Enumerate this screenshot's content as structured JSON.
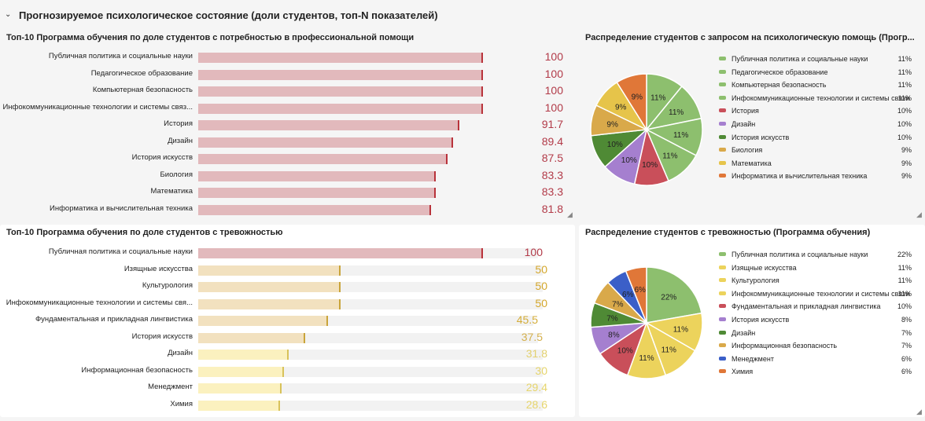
{
  "section": {
    "title": "Прогнозируемое психологическое состояние (доли студентов, топ-N показателей)",
    "chevron": "⌄"
  },
  "panels": {
    "bar_top": {
      "title": "Топ-10 Программа обучения по доле студентов с потребностью в профессиональной помощи"
    },
    "pie_top": {
      "title": "Распределение студентов с запросом на психологическую помощь (Прогр..."
    },
    "bar_bottom": {
      "title": "Топ-10 Программа обучения по доле студентов с тревожностью"
    },
    "pie_bottom": {
      "title": "Распределение студентов с тревожностью (Программа обучения)"
    }
  },
  "chart_data": [
    {
      "type": "bar",
      "title": "Топ-10 Программа обучения по доле студентов с потребностью в профессиональной помощи",
      "categories": [
        "Публичная политика и социальные науки",
        "Педагогическое образование",
        "Компьютерная безопасность",
        "Инфокоммуникационные технологии и системы связ...",
        "История",
        "Дизайн",
        "История искусств",
        "Биология",
        "Математика",
        "Информатика и вычислительная техника"
      ],
      "value_labels": [
        "100",
        "100",
        "100",
        "100",
        "91.7",
        "89.4",
        "87.5",
        "83.3",
        "83.3",
        "81.8"
      ],
      "values": [
        100,
        100,
        100,
        100,
        91.7,
        89.4,
        87.5,
        83.3,
        83.3,
        81.8
      ],
      "max": 100,
      "bar_colors": [
        "#e2b9bc",
        "#e2b9bc",
        "#e2b9bc",
        "#e2b9bc",
        "#e2b9bc",
        "#e2b9bc",
        "#e2b9bc",
        "#e2b9bc",
        "#e2b9bc",
        "#e2b9bc"
      ],
      "tick_colors": [
        "#b8323a",
        "#b8323a",
        "#b8323a",
        "#b8323a",
        "#b8323a",
        "#b8323a",
        "#b8323a",
        "#b8323a",
        "#b8323a",
        "#b8323a"
      ],
      "value_colors": [
        "#b23a48",
        "#b23a48",
        "#b23a48",
        "#b23a48",
        "#b23a48",
        "#b23a48",
        "#b23a48",
        "#b23a48",
        "#b23a48",
        "#b23a48"
      ],
      "show_track": false
    },
    {
      "type": "pie",
      "title": "Распределение студентов с запросом на психологическую помощь (Прогр...",
      "labels": [
        "Публичная политика и социальные науки",
        "Педагогическое образование",
        "Компьютерная безопасность",
        "Инфокоммуникационные технологии и системы связи",
        "История",
        "Дизайн",
        "История искусств",
        "Биология",
        "Математика",
        "Информатика и вычислительная техника"
      ],
      "pct_labels": [
        "11%",
        "11%",
        "11%",
        "11%",
        "10%",
        "10%",
        "10%",
        "9%",
        "9%",
        "9%"
      ],
      "values": [
        11,
        11,
        11,
        11,
        10,
        10,
        10,
        9,
        9,
        9
      ],
      "colors": [
        "#8dbf6e",
        "#8dbf6e",
        "#8dbf6e",
        "#8dbf6e",
        "#c94f5a",
        "#a57fcf",
        "#4f8a35",
        "#d9a94a",
        "#e6c44a",
        "#e07738"
      ]
    },
    {
      "type": "bar",
      "title": "Топ-10 Программа обучения по доле студентов с тревожностью",
      "categories": [
        "Публичная политика и социальные науки",
        "Изящные искусства",
        "Культурология",
        "Инфокоммуникационные технологии и системы свя...",
        "Фундаментальная и прикладная лингвистика",
        "История искусств",
        "Дизайн",
        "Информационная безопасность",
        "Менеджмент",
        "Химия"
      ],
      "value_labels": [
        "100",
        "50",
        "50",
        "50",
        "45.5",
        "37.5",
        "31.8",
        "30",
        "29.4",
        "28.6"
      ],
      "values": [
        100,
        50,
        50,
        50,
        45.5,
        37.5,
        31.8,
        30,
        29.4,
        28.6
      ],
      "max": 100,
      "bar_colors": [
        "#e2b9bc",
        "#f2e1bf",
        "#f2e1bf",
        "#f2e1bf",
        "#f2e1bf",
        "#f2e1bf",
        "#fbf1bf",
        "#fbf1bf",
        "#fbf1bf",
        "#fbf1bf"
      ],
      "tick_colors": [
        "#b8323a",
        "#c9a43a",
        "#c9a43a",
        "#c9a43a",
        "#c9a43a",
        "#c9a43a",
        "#d8c25a",
        "#d8c25a",
        "#d8c25a",
        "#d8c25a"
      ],
      "value_colors": [
        "#b23a48",
        "#d4a72c",
        "#d4a72c",
        "#d4a72c",
        "#d4ad3a",
        "#d4b04e",
        "#e2d06e",
        "#e6d56c",
        "#e6d56c",
        "#e6d56c"
      ],
      "show_track": true
    },
    {
      "type": "pie",
      "title": "Распределение студентов с тревожностью (Программа обучения)",
      "labels": [
        "Публичная политика и социальные науки",
        "Изящные искусства",
        "Культурология",
        "Инфокоммуникационные технологии и системы связи",
        "Фундаментальная и прикладная лингвистика",
        "История искусств",
        "Дизайн",
        "Информационная безопасность",
        "Менеджмент",
        "Химия"
      ],
      "pct_labels": [
        "22%",
        "11%",
        "11%",
        "11%",
        "10%",
        "8%",
        "7%",
        "7%",
        "6%",
        "6%"
      ],
      "values": [
        22,
        11,
        11,
        11,
        10,
        8,
        7,
        7,
        6,
        6
      ],
      "colors": [
        "#8dbf6e",
        "#ecd35c",
        "#ecd35c",
        "#ecd35c",
        "#c94f5a",
        "#a57fcf",
        "#4f8a35",
        "#d9a94a",
        "#3b5fc8",
        "#e07738"
      ]
    }
  ]
}
